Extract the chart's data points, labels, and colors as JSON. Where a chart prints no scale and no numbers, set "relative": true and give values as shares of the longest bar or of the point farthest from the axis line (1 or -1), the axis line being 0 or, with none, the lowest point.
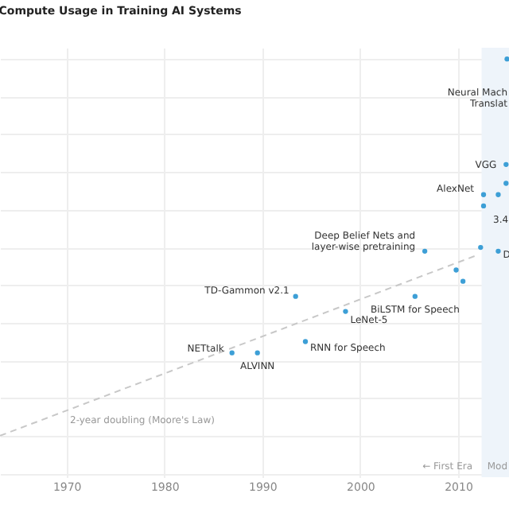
{
  "chart_data": {
    "type": "scatter",
    "title": "Compute Usage in Training AI Systems",
    "relative": true,
    "xlim": [
      1963.2,
      2015.2
    ],
    "xticks": [
      1970,
      1980,
      1990,
      2000,
      2010
    ],
    "grid": true,
    "series": [
      {
        "color": "#3d9fd6",
        "marker": "circle",
        "x": [
          2015.0,
          2014.9,
          2014.9,
          2012.6,
          2014.1,
          2012.6,
          2006.6,
          2012.3,
          2014.1,
          2009.8,
          2010.5,
          1993.4,
          2005.6,
          1998.5,
          1986.9,
          1989.5,
          1994.4
        ],
        "values": [
          1.0,
          0.72,
          0.67,
          0.64,
          0.64,
          0.61,
          0.49,
          0.5,
          0.49,
          0.44,
          0.41,
          0.37,
          0.37,
          0.33,
          0.22,
          0.22,
          0.25
        ]
      },
      {
        "type": "line",
        "color": "#c8c8c8",
        "line_style": "dashed",
        "x": [
          1963.2,
          2012.0
        ],
        "values": [
          0,
          0.48
        ]
      }
    ],
    "bands": [
      {
        "axis": "x",
        "from": 2012.4,
        "to": 2015.2,
        "color": "#eef4fa"
      }
    ],
    "annotations": [
      "Neural Mach\nTranslat",
      {
        "text": "VGG",
        "x": 2014.9,
        "y": 0.72
      },
      {
        "text": "AlexNet",
        "x": 2012.6,
        "y": 0.64
      },
      "3.4",
      {
        "text": "Deep Belief Nets and\nlayer-wise pretraining",
        "x": 2006.6,
        "y": 0.49
      },
      {
        "text": "D",
        "x": 2014.1,
        "y": 0.49
      },
      {
        "text": "TD-Gammon v2.1",
        "x": 1993.4,
        "y": 0.37
      },
      {
        "text": "BiLSTM for Speech",
        "x": 2005.6,
        "y": 0.37
      },
      {
        "text": "LeNet-5",
        "x": 1998.5,
        "y": 0.33
      },
      {
        "text": "NETtalk",
        "x": 1986.9,
        "y": 0.22
      },
      {
        "text": "ALVINN",
        "x": 1989.5,
        "y": 0.22
      },
      {
        "text": "RNN for Speech",
        "x": 1994.4,
        "y": 0.25
      },
      "2-year doubling (Moore's Law)",
      "← First Era",
      "Mod"
    ]
  }
}
